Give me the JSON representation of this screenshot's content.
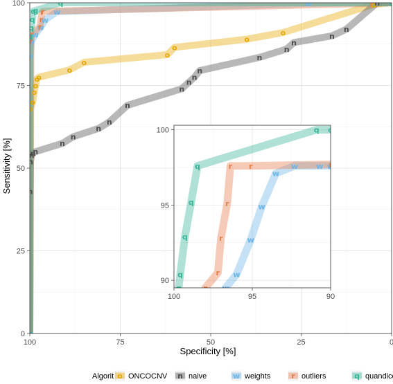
{
  "chart_data": {
    "type": "line",
    "xlabel": "Specificity [%]",
    "ylabel": "Sensitivity [%]",
    "xlim": [
      100,
      0
    ],
    "ylim": [
      0,
      100
    ],
    "x_ticks": [
      100,
      75,
      50,
      25,
      0
    ],
    "y_ticks": [
      0,
      25,
      50,
      75,
      100
    ],
    "grid": true,
    "legend_title": "Algorithm",
    "legend_position": "bottom",
    "series": [
      {
        "name": "ONCOCNV",
        "marker": "o",
        "color": "#e6a800",
        "x": [
          100,
          99.9,
          99.2,
          98.8,
          98.4,
          98.0,
          97.5,
          89,
          85,
          62,
          60,
          40,
          30,
          5,
          0
        ],
        "y": [
          0,
          68,
          70,
          73,
          75,
          77,
          77.5,
          79.7,
          82,
          84.3,
          86.5,
          89,
          91,
          99.5,
          100
        ]
      },
      {
        "name": "naive",
        "marker": "n",
        "color": "#4d4d4d",
        "x": [
          100,
          99.9,
          99.8,
          99.5,
          99.1,
          98.4,
          91,
          88,
          81,
          78,
          73,
          58,
          56,
          54.5,
          53,
          36.5,
          29,
          27,
          16.5,
          12.5,
          4,
          0
        ],
        "y": [
          0,
          43,
          52,
          54,
          54.5,
          55,
          57.5,
          59.5,
          62,
          64,
          69,
          74,
          76,
          77.5,
          79.5,
          83.5,
          86,
          88,
          90,
          92,
          100,
          100
        ]
      },
      {
        "name": "weights",
        "marker": "w",
        "color": "#6bb5e6",
        "x": [
          100,
          99.9,
          99.6,
          98.5,
          97.0,
          95.8,
          92.5,
          23,
          0
        ],
        "y": [
          0,
          84,
          88.2,
          90.4,
          92.6,
          94.8,
          97.3,
          99.8,
          100
        ]
      },
      {
        "name": "outliers",
        "marker": "r",
        "color": "#e67e4a",
        "x": [
          100,
          99.7,
          99.4,
          97.2,
          96.9,
          96.6,
          96.4,
          5.5,
          0
        ],
        "y": [
          0,
          88.4,
          90.6,
          92.8,
          95,
          97.2,
          97.4,
          99.8,
          100
        ]
      },
      {
        "name": "quandico",
        "marker": "q",
        "color": "#36b598",
        "x": [
          100,
          99.9,
          99.6,
          99.3,
          99.0,
          98.4,
          91.5,
          0
        ],
        "y": [
          0,
          90,
          92.5,
          95,
          97.5,
          97.7,
          100,
          100
        ]
      }
    ],
    "inset": {
      "xlim": [
        100,
        90
      ],
      "ylim": [
        89.5,
        100.3
      ],
      "x_ticks": [
        100,
        95,
        90
      ],
      "y_ticks": [
        90,
        95,
        100
      ],
      "series": [
        {
          "name": "ONCOCNV",
          "x": [],
          "y": []
        },
        {
          "name": "naive",
          "x": [],
          "y": []
        },
        {
          "name": "weights",
          "x": [
            96.7,
            96.0,
            95.1,
            94.4,
            93.5,
            92.3,
            90.7,
            90.0
          ],
          "y": [
            89.5,
            90.4,
            92.7,
            94.9,
            97.1,
            97.6,
            97.6,
            97.6
          ]
        },
        {
          "name": "outliers",
          "x": [
            98.0,
            97.2,
            97.0,
            96.6,
            96.4,
            95.1,
            90.0
          ],
          "y": [
            89.5,
            90.5,
            92.8,
            95.1,
            97.6,
            97.6,
            97.7
          ]
        },
        {
          "name": "quandico",
          "x": [
            99.7,
            99.6,
            99.3,
            98.9,
            98.5,
            90.9,
            90.0
          ],
          "y": [
            89.5,
            90.4,
            92.9,
            95.2,
            97.6,
            100,
            100
          ]
        }
      ]
    }
  }
}
